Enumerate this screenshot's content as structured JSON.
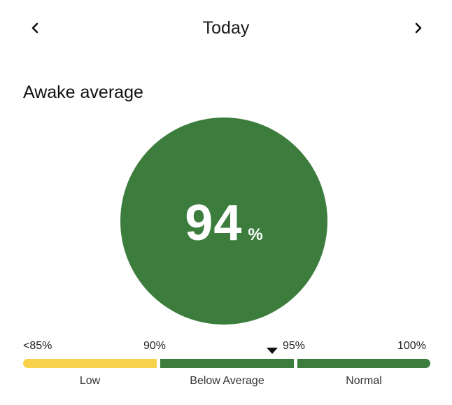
{
  "header": {
    "title": "Today",
    "prev_icon": "chevron-left-icon",
    "next_icon": "chevron-right-icon"
  },
  "section": {
    "title": "Awake average"
  },
  "gauge": {
    "value": "94",
    "unit": "%",
    "color": "#3c7d3e"
  },
  "scale": {
    "ticks": [
      "<85%",
      "90%",
      "95%",
      "100%"
    ],
    "zones": [
      {
        "label": "Low",
        "color": "#f9d24b"
      },
      {
        "label": "Below Average",
        "color": "#3c7d3e"
      },
      {
        "label": "Normal",
        "color": "#3c7d3e"
      }
    ],
    "marker_value": 94,
    "marker_color": "#111111"
  }
}
